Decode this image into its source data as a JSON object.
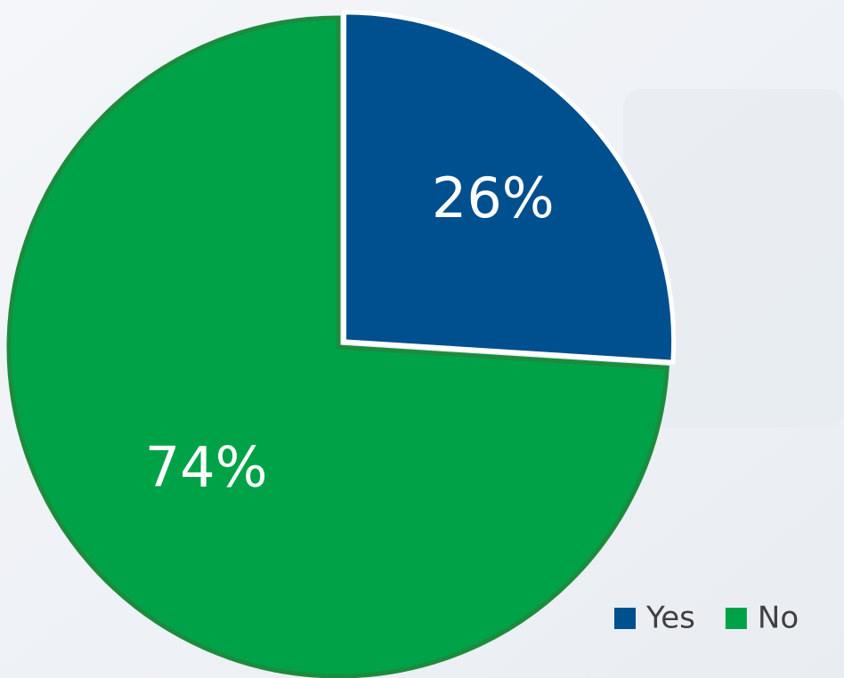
{
  "chart_data": {
    "type": "pie",
    "categories": [
      "Yes",
      "No"
    ],
    "values": [
      26,
      74
    ],
    "value_labels": [
      "26%",
      "74%"
    ],
    "colors": [
      "#004f8e",
      "#00a248"
    ],
    "legend": "bottom-right"
  }
}
